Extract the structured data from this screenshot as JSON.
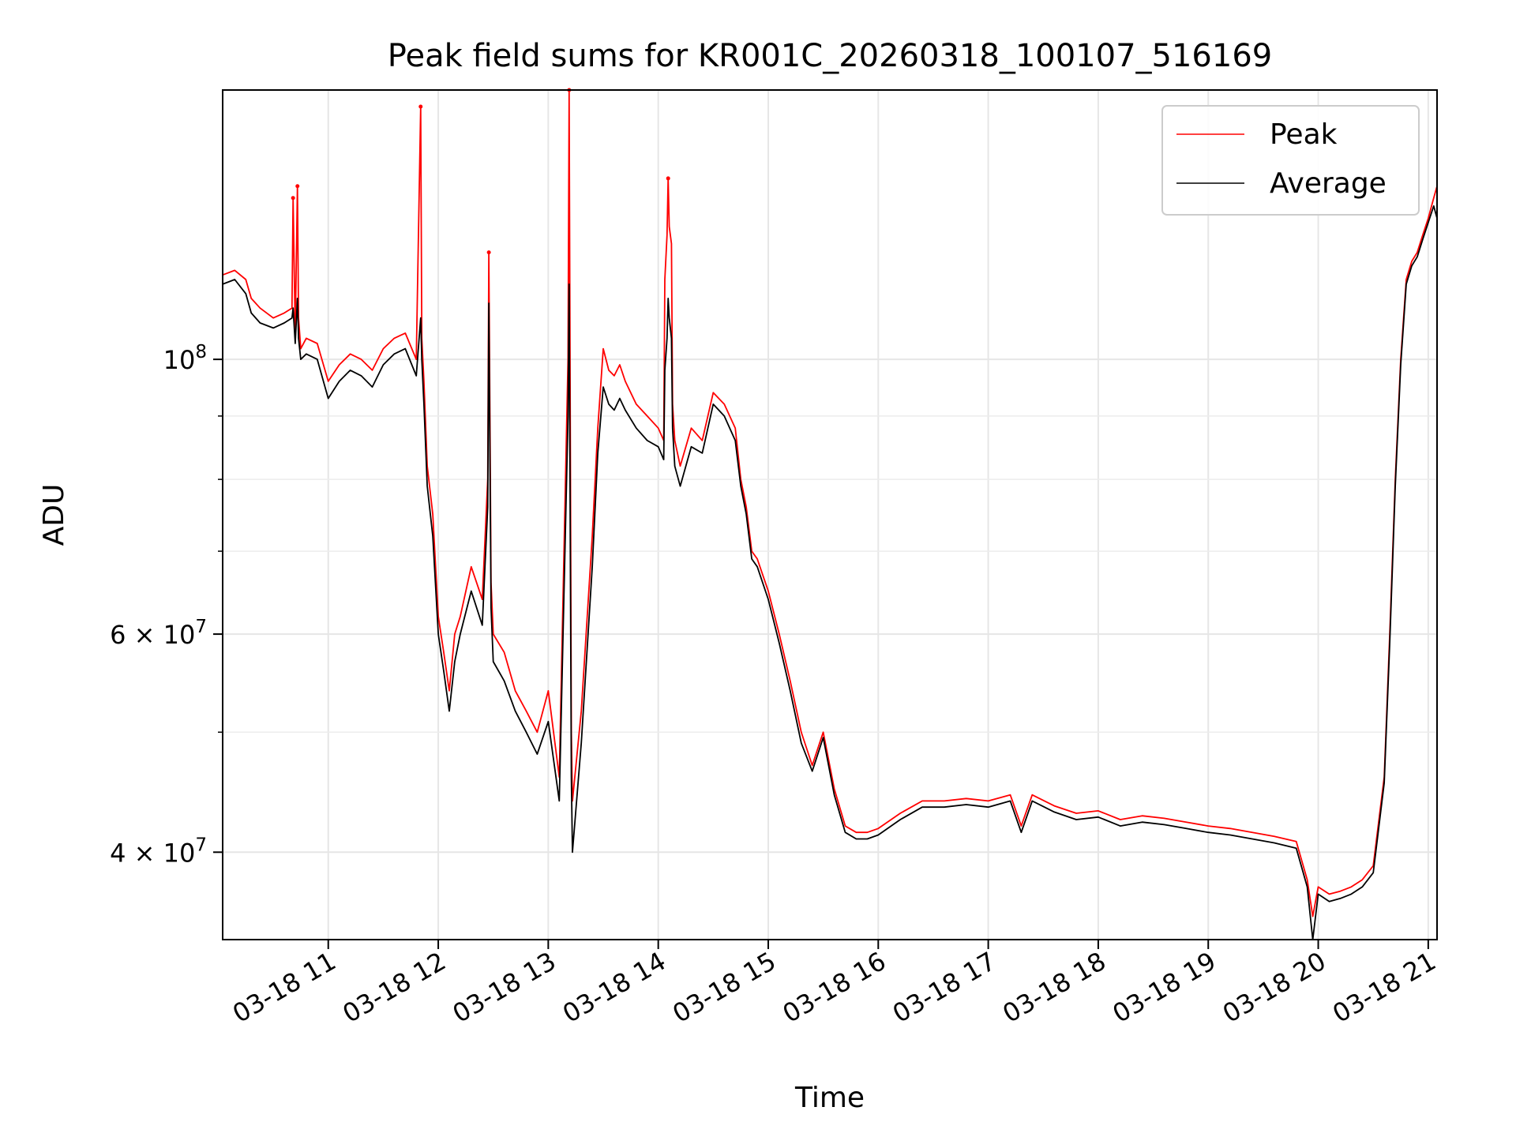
{
  "chart_data": {
    "type": "line",
    "title": "Peak field sums for KR001C_20260318_100107_516169",
    "xlabel": "Time",
    "ylabel": "ADU",
    "yscale": "log",
    "ylim": [
      34000000,
      165000000
    ],
    "xlim_hours": [
      10.04,
      21.08
    ],
    "grid": true,
    "legend_position": "upper right",
    "x_tick_values": [
      11,
      12,
      13,
      14,
      15,
      16,
      17,
      18,
      19,
      20,
      21
    ],
    "x_tick_labels": [
      "03-18 11",
      "03-18 12",
      "03-18 13",
      "03-18 14",
      "03-18 15",
      "03-18 16",
      "03-18 17",
      "03-18 18",
      "03-18 19",
      "03-18 20",
      "03-18 21"
    ],
    "y_major_ticks": [
      {
        "value": 40000000,
        "mantissa": "4",
        "base": "10",
        "exp": "7"
      },
      {
        "value": 60000000,
        "mantissa": "6",
        "base": "10",
        "exp": "7"
      },
      {
        "value": 100000000,
        "mantissa": "",
        "base": "10",
        "exp": "8"
      }
    ],
    "y_minor_ticks": [
      50000000,
      70000000,
      80000000,
      90000000
    ],
    "series": [
      {
        "name": "Peak",
        "color": "#ff0000",
        "x": [
          10.04,
          10.15,
          10.25,
          10.3,
          10.38,
          10.5,
          10.6,
          10.67,
          10.68,
          10.7,
          10.72,
          10.73,
          10.75,
          10.8,
          10.9,
          11.0,
          11.1,
          11.2,
          11.3,
          11.4,
          11.5,
          11.6,
          11.7,
          11.8,
          11.84,
          11.85,
          11.87,
          11.9,
          11.95,
          12.0,
          12.05,
          12.1,
          12.15,
          12.2,
          12.3,
          12.4,
          12.45,
          12.46,
          12.48,
          12.5,
          12.6,
          12.7,
          12.8,
          12.9,
          13.0,
          13.1,
          13.18,
          13.19,
          13.21,
          13.22,
          13.3,
          13.4,
          13.45,
          13.5,
          13.55,
          13.6,
          13.65,
          13.7,
          13.8,
          13.9,
          14.0,
          14.05,
          14.06,
          14.08,
          14.09,
          14.1,
          14.12,
          14.13,
          14.15,
          14.2,
          14.3,
          14.4,
          14.5,
          14.6,
          14.7,
          14.75,
          14.8,
          14.85,
          14.9,
          15.0,
          15.1,
          15.2,
          15.3,
          15.4,
          15.5,
          15.6,
          15.7,
          15.8,
          15.9,
          16.0,
          16.2,
          16.4,
          16.6,
          16.8,
          17.0,
          17.2,
          17.3,
          17.4,
          17.6,
          17.8,
          18.0,
          18.2,
          18.4,
          18.6,
          18.8,
          19.0,
          19.2,
          19.4,
          19.6,
          19.8,
          19.9,
          19.95,
          20.0,
          20.1,
          20.2,
          20.3,
          20.4,
          20.5,
          20.6,
          20.65,
          20.7,
          20.75,
          20.8,
          20.85,
          20.9,
          20.95,
          21.0,
          21.05,
          21.08
        ],
        "y": [
          117000000,
          118000000,
          116000000,
          112000000,
          110000000,
          108000000,
          109000000,
          110000000,
          135000000,
          105000000,
          138000000,
          108000000,
          102000000,
          104000000,
          103000000,
          96000000,
          99000000,
          101000000,
          100000000,
          98000000,
          102000000,
          104000000,
          105000000,
          100000000,
          160000000,
          104000000,
          96000000,
          82000000,
          75000000,
          62000000,
          58000000,
          54000000,
          60000000,
          62000000,
          68000000,
          64000000,
          80000000,
          122000000,
          66000000,
          60000000,
          58000000,
          54000000,
          52000000,
          50000000,
          54000000,
          46000000,
          100000000,
          166000000,
          50000000,
          44000000,
          52000000,
          72000000,
          88000000,
          102000000,
          98000000,
          97000000,
          99000000,
          96000000,
          92000000,
          90000000,
          88000000,
          86000000,
          116000000,
          126000000,
          140000000,
          128000000,
          124000000,
          92000000,
          86000000,
          82000000,
          88000000,
          86000000,
          94000000,
          92000000,
          88000000,
          80000000,
          76000000,
          70000000,
          69000000,
          65000000,
          60000000,
          55000000,
          50000000,
          47000000,
          50000000,
          45000000,
          42000000,
          41500000,
          41500000,
          41800000,
          43000000,
          44000000,
          44000000,
          44200000,
          44000000,
          44500000,
          42000000,
          44500000,
          43600000,
          43000000,
          43200000,
          42500000,
          42800000,
          42600000,
          42300000,
          42000000,
          41800000,
          41500000,
          41200000,
          40800000,
          38000000,
          35500000,
          37500000,
          37000000,
          37200000,
          37500000,
          38000000,
          39000000,
          46000000,
          60000000,
          80000000,
          100000000,
          116000000,
          120000000,
          122000000,
          126000000,
          130000000,
          135000000,
          138000000
        ],
        "spikes": [
          {
            "x": 10.68,
            "y": 135000000
          },
          {
            "x": 10.72,
            "y": 138000000
          },
          {
            "x": 11.84,
            "y": 160000000
          },
          {
            "x": 12.46,
            "y": 122000000
          },
          {
            "x": 13.19,
            "y": 166000000
          },
          {
            "x": 14.09,
            "y": 140000000
          }
        ]
      },
      {
        "name": "Average",
        "color": "#000000",
        "x": [
          10.04,
          10.15,
          10.25,
          10.3,
          10.38,
          10.5,
          10.6,
          10.67,
          10.68,
          10.7,
          10.72,
          10.73,
          10.75,
          10.8,
          10.9,
          11.0,
          11.1,
          11.2,
          11.3,
          11.4,
          11.5,
          11.6,
          11.7,
          11.8,
          11.84,
          11.85,
          11.87,
          11.9,
          11.95,
          12.0,
          12.05,
          12.1,
          12.15,
          12.2,
          12.3,
          12.4,
          12.45,
          12.46,
          12.48,
          12.5,
          12.6,
          12.7,
          12.8,
          12.9,
          13.0,
          13.1,
          13.18,
          13.19,
          13.21,
          13.22,
          13.3,
          13.4,
          13.45,
          13.5,
          13.55,
          13.6,
          13.65,
          13.7,
          13.8,
          13.9,
          14.0,
          14.05,
          14.06,
          14.08,
          14.09,
          14.1,
          14.12,
          14.13,
          14.15,
          14.2,
          14.3,
          14.4,
          14.5,
          14.6,
          14.7,
          14.75,
          14.8,
          14.85,
          14.9,
          15.0,
          15.1,
          15.2,
          15.3,
          15.4,
          15.5,
          15.6,
          15.7,
          15.8,
          15.9,
          16.0,
          16.2,
          16.4,
          16.6,
          16.8,
          17.0,
          17.2,
          17.3,
          17.4,
          17.6,
          17.8,
          18.0,
          18.2,
          18.4,
          18.6,
          18.8,
          19.0,
          19.2,
          19.4,
          19.6,
          19.8,
          19.9,
          19.95,
          20.0,
          20.1,
          20.2,
          20.3,
          20.4,
          20.5,
          20.6,
          20.65,
          20.7,
          20.75,
          20.8,
          20.85,
          20.9,
          20.95,
          21.0,
          21.05,
          21.08
        ],
        "y": [
          115000000,
          116000000,
          113000000,
          109000000,
          107000000,
          106000000,
          107000000,
          108000000,
          110000000,
          103000000,
          112000000,
          104000000,
          100000000,
          101000000,
          100000000,
          93000000,
          96000000,
          98000000,
          97000000,
          95000000,
          99000000,
          101000000,
          102000000,
          97000000,
          108000000,
          100000000,
          92000000,
          79000000,
          72000000,
          60000000,
          56000000,
          52000000,
          57000000,
          60000000,
          65000000,
          61000000,
          76000000,
          111000000,
          63000000,
          57000000,
          55000000,
          52000000,
          50000000,
          48000000,
          51000000,
          44000000,
          90000000,
          115000000,
          46000000,
          40000000,
          49000000,
          68000000,
          84000000,
          95000000,
          92000000,
          91000000,
          93000000,
          91000000,
          88000000,
          86000000,
          85000000,
          83000000,
          98000000,
          104000000,
          112000000,
          108000000,
          104000000,
          88000000,
          82000000,
          79000000,
          85000000,
          84000000,
          92000000,
          90000000,
          86000000,
          79000000,
          75000000,
          69000000,
          68000000,
          64000000,
          59000000,
          54000000,
          49000000,
          46500000,
          49500000,
          44500000,
          41500000,
          41000000,
          41000000,
          41300000,
          42500000,
          43500000,
          43500000,
          43700000,
          43500000,
          44000000,
          41500000,
          44000000,
          43100000,
          42500000,
          42700000,
          42000000,
          42300000,
          42100000,
          41800000,
          41500000,
          41300000,
          41000000,
          40700000,
          40300000,
          37500000,
          33000000,
          37000000,
          36500000,
          36700000,
          37000000,
          37500000,
          38500000,
          45500000,
          59000000,
          79000000,
          99000000,
          115000000,
          119000000,
          121000000,
          125000000,
          129000000,
          133000000,
          130000000
        ]
      }
    ]
  }
}
